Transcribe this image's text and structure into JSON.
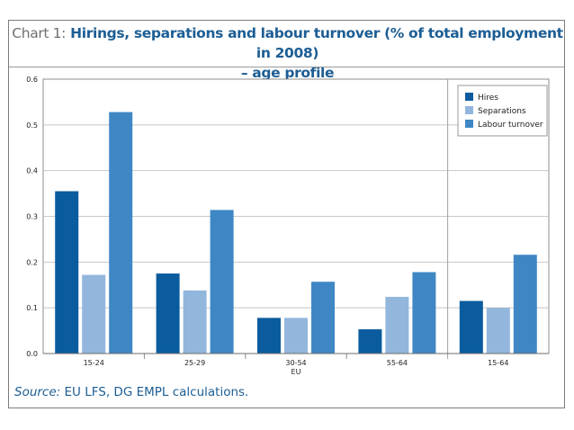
{
  "title": {
    "prefix": "Chart 1:",
    "line1": "Hirings, separations and labour turnover (% of total employment in 2008)",
    "line2": "– age profile"
  },
  "source": {
    "label": "Source:",
    "text": "EU LFS, DG EMPL calculations."
  },
  "chart_data": {
    "type": "bar",
    "title": "Hirings, separations and labour turnover (% of total employment in 2008) – age profile",
    "categories": [
      "15-24",
      "25-29",
      "30-54",
      "55-64",
      "15-64"
    ],
    "group_label": "EU",
    "series": [
      {
        "name": "Hires",
        "values": [
          0.355,
          0.175,
          0.078,
          0.053,
          0.115
        ],
        "color": "#0a5c9e"
      },
      {
        "name": "Separations",
        "values": [
          0.172,
          0.138,
          0.078,
          0.124,
          0.1
        ],
        "color": "#93b6dc"
      },
      {
        "name": "Labour turnover",
        "values": [
          0.528,
          0.314,
          0.157,
          0.178,
          0.216
        ],
        "color": "#3f87c4"
      }
    ],
    "ylim": [
      0,
      0.6
    ],
    "yticks": [
      "0.0",
      "0.1",
      "0.2",
      "0.3",
      "0.4",
      "0.5",
      "0.6"
    ],
    "grid": true,
    "legend": "top-right"
  }
}
